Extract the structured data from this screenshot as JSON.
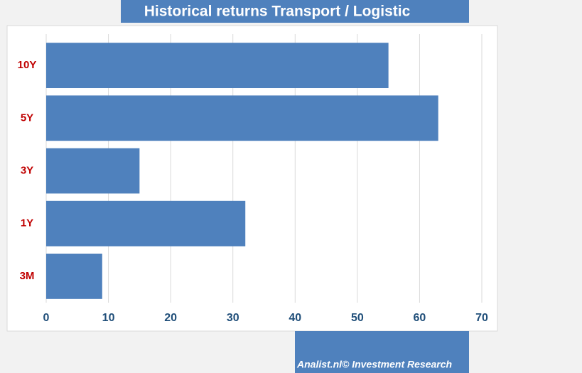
{
  "chart_data": {
    "type": "bar",
    "orientation": "horizontal",
    "title": "Historical returns Transport / Logistic",
    "categories": [
      "10Y",
      "5Y",
      "3Y",
      "1Y",
      "3M"
    ],
    "values": [
      55,
      63,
      15,
      32,
      9
    ],
    "color": "#4f81bd",
    "xlim": [
      0,
      70
    ],
    "xticks": [
      0,
      10,
      20,
      30,
      40,
      50,
      60,
      70
    ],
    "grid": true,
    "footer": "Analist.nl© Investment Research"
  }
}
